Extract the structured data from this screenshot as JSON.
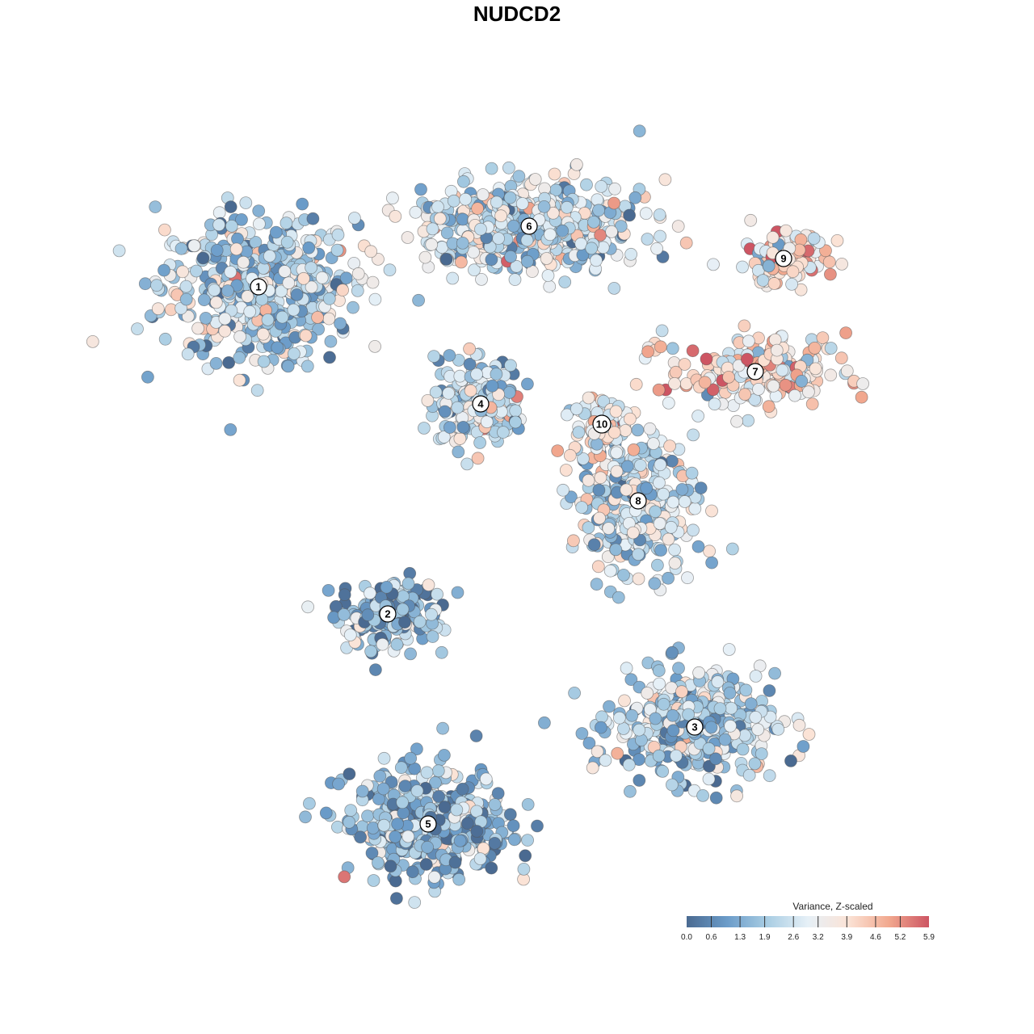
{
  "chart_data": {
    "type": "scatter",
    "title": "NUDCD2",
    "xlabel": "",
    "ylabel": "",
    "grid": false,
    "legend": {
      "title": "Variance, Z-scaled",
      "placement": "bottom-right",
      "ticks": [
        "0.0",
        "0.6",
        "1.3",
        "1.9",
        "2.6",
        "3.2",
        "3.9",
        "4.6",
        "5.2",
        "5.9"
      ],
      "range": [
        0.0,
        5.9
      ],
      "colors": [
        "#4a6a91",
        "#6b9cc9",
        "#a9cde3",
        "#e6f0f7",
        "#fbe3d6",
        "#f2a98f",
        "#cd5563"
      ]
    },
    "clusters": [
      {
        "label": "1",
        "x": -32.0,
        "y": 28.5,
        "mean_value": 2.1
      },
      {
        "label": "2",
        "x": -16.0,
        "y": -12.0,
        "mean_value": 1.4
      },
      {
        "label": "3",
        "x": 22.0,
        "y": -26.0,
        "mean_value": 1.9
      },
      {
        "label": "4",
        "x": -4.5,
        "y": 14.0,
        "mean_value": 2.4
      },
      {
        "label": "5",
        "x": -11.0,
        "y": -38.0,
        "mean_value": 1.6
      },
      {
        "label": "6",
        "x": 1.5,
        "y": 36.0,
        "mean_value": 2.5
      },
      {
        "label": "7",
        "x": 29.5,
        "y": 18.0,
        "mean_value": 3.7
      },
      {
        "label": "8",
        "x": 15.0,
        "y": 2.0,
        "mean_value": 2.4
      },
      {
        "label": "9",
        "x": 33.0,
        "y": 32.0,
        "mean_value": 3.8
      },
      {
        "label": "10",
        "x": 10.5,
        "y": 11.5,
        "mean_value": 3.4
      }
    ]
  }
}
